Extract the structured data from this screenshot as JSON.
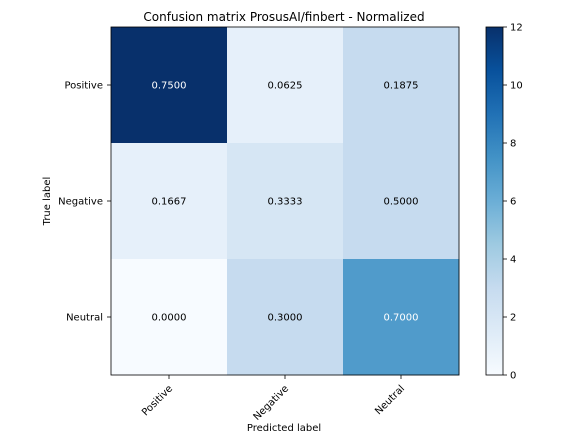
{
  "chart_data": {
    "type": "heatmap",
    "title": "Confusion matrix ProsusAI/finbert - Normalized",
    "xlabel": "Predicted label",
    "ylabel": "True label",
    "x_categories": [
      "Positive",
      "Negative",
      "Neutral"
    ],
    "y_categories": [
      "Positive",
      "Negative",
      "Neutral"
    ],
    "values": [
      [
        0.75,
        0.0625,
        0.1875
      ],
      [
        0.1667,
        0.3333,
        0.5
      ],
      [
        0.0,
        0.3,
        0.7
      ]
    ],
    "cell_labels": [
      [
        "0.7500",
        "0.0625",
        "0.1875"
      ],
      [
        "0.1667",
        "0.3333",
        "0.5000"
      ],
      [
        "0.0000",
        "0.3000",
        "0.7000"
      ]
    ],
    "color_values": [
      [
        12,
        1,
        3
      ],
      [
        1,
        2,
        3
      ],
      [
        0,
        3,
        7
      ]
    ],
    "colormap": "Blues",
    "colorbar": {
      "range": [
        0,
        12
      ],
      "ticks": [
        "0",
        "2",
        "4",
        "6",
        "8",
        "10",
        "12"
      ]
    },
    "grid": false
  }
}
